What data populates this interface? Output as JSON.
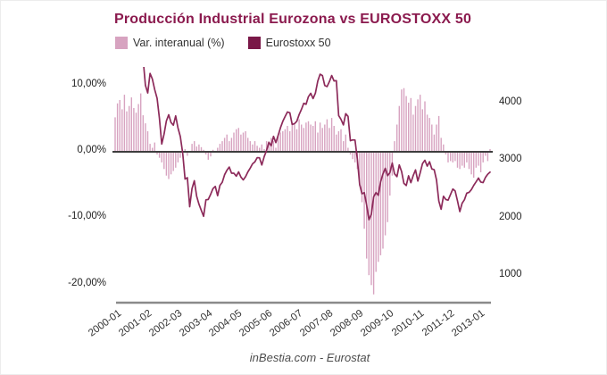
{
  "title": "Producción Industrial Eurozona vs EUROSTOXX 50",
  "legend": [
    {
      "label": "Var. interanual (%)"
    },
    {
      "label": "Eurostoxx 50"
    }
  ],
  "footer": "inBestia.com - Eurostat",
  "colors": {
    "title": "#8b1a4e",
    "bars": "#d7a3c0",
    "line": "#8c2a5a",
    "legend_bar_swatch": "#d7a3c0",
    "legend_line_swatch": "#7a1848",
    "zero_line": "#3d3d3d",
    "axis_line": "#8a8a8a"
  },
  "chart_data": {
    "type": "combo",
    "title": "Producción Industrial Eurozona vs EUROSTOXX 50",
    "x_start": "2000-01",
    "x_frequency": "monthly",
    "x_tick_labels": [
      "2000-01",
      "2001-02",
      "2002-03",
      "2003-04",
      "2004-05",
      "2005-06",
      "2006-07",
      "2007-08",
      "2008-09",
      "2009-10",
      "2010-11",
      "2011-12",
      "2013-01"
    ],
    "x_tick_indices": [
      0,
      13,
      26,
      39,
      52,
      65,
      78,
      91,
      104,
      117,
      130,
      143,
      156
    ],
    "left_axis": {
      "ticks": [
        "10,00%",
        "0,00%",
        "-10,00%",
        "-20,00%"
      ],
      "tick_values": [
        10,
        0,
        -10,
        -20
      ],
      "range": [
        -22.8,
        12.6
      ],
      "grid": false
    },
    "right_axis": {
      "ticks": [
        "4000",
        "3000",
        "2000",
        "1000"
      ],
      "tick_values": [
        4000,
        3000,
        2000,
        1000
      ],
      "range": [
        530,
        4620
      ],
      "grid": false
    },
    "legend_position": "top-left",
    "series": [
      {
        "name": "Var. interanual (%)",
        "type": "bar",
        "axis": "left",
        "unit": "%",
        "values": [
          5.2,
          7.3,
          7.8,
          6.4,
          8.6,
          6.1,
          6.9,
          8.2,
          6.6,
          5.9,
          7.2,
          8.8,
          5.5,
          4.3,
          3.1,
          1.2,
          0.6,
          1.4,
          -0.4,
          -0.9,
          -1.6,
          -2.6,
          -3.6,
          -4.1,
          -3.4,
          -2.9,
          -2.4,
          -1.6,
          -0.9,
          -0.4,
          0.4,
          -0.6,
          0.1,
          1.2,
          1.6,
          0.8,
          1.1,
          0.7,
          0.3,
          -0.4,
          -1.2,
          -0.7,
          0.3,
          0.1,
          0.6,
          1.2,
          1.6,
          2.1,
          2.6,
          1.6,
          2.1,
          2.9,
          3.4,
          3.6,
          2.6,
          2.9,
          3.1,
          2.1,
          1.6,
          1.1,
          1.6,
          0.9,
          0.6,
          1.1,
          0.4,
          1.6,
          1.1,
          2.1,
          1.6,
          0.6,
          2.6,
          2.9,
          3.1,
          3.4,
          3.9,
          3.1,
          4.4,
          4.1,
          3.4,
          4.9,
          4.1,
          3.6,
          4.4,
          4.6,
          4.1,
          3.9,
          4.6,
          2.9,
          4.4,
          3.6,
          4.1,
          4.9,
          3.6,
          5.1,
          3.9,
          2.6,
          3.1,
          3.4,
          1.6,
          2.6,
          0.6,
          -0.4,
          -1.1,
          -1.6,
          -2.6,
          -5.1,
          -7.6,
          -11.6,
          -16.1,
          -18.6,
          -20.1,
          -21.5,
          -18.1,
          -16.6,
          -15.6,
          -14.6,
          -12.6,
          -10.6,
          -6.6,
          -3.6,
          1.6,
          4.1,
          6.9,
          9.4,
          9.6,
          8.4,
          7.4,
          8.1,
          5.6,
          6.9,
          7.9,
          8.6,
          6.4,
          7.6,
          5.6,
          5.1,
          4.1,
          2.6,
          4.1,
          5.4,
          2.1,
          1.1,
          -0.4,
          -1.6,
          -1.4,
          -1.6,
          -1.4,
          -2.4,
          -2.6,
          -2.1,
          -2.4,
          -1.6,
          -2.6,
          -3.4,
          -3.9,
          -2.4,
          -2.1,
          -3.1,
          -1.6,
          -0.6,
          -1.4,
          0.4
        ]
      },
      {
        "name": "Eurostoxx 50",
        "type": "line",
        "axis": "right",
        "values": [
          4659,
          4915,
          5249,
          5226,
          5085,
          5145,
          5115,
          5175,
          4915,
          4822,
          4790,
          4772,
          4780,
          4319,
          4185,
          4526,
          4426,
          4244,
          4092,
          3743,
          3296,
          3468,
          3698,
          3806,
          3671,
          3624,
          3785,
          3574,
          3426,
          3133,
          2686,
          2709,
          2204,
          2519,
          2656,
          2386,
          2248,
          2140,
          2036,
          2324,
          2330,
          2420,
          2519,
          2556,
          2395,
          2575,
          2630,
          2761,
          2839,
          2894,
          2787,
          2787,
          2736,
          2811,
          2720,
          2671,
          2726,
          2811,
          2876,
          2951,
          2984,
          3058,
          3056,
          2930,
          3077,
          3182,
          3327,
          3264,
          3429,
          3320,
          3447,
          3579,
          3691,
          3774,
          3854,
          3840,
          3637,
          3649,
          3692,
          3809,
          3899,
          4005,
          3987,
          4120,
          4179,
          4087,
          4181,
          4392,
          4512,
          4489,
          4316,
          4295,
          4382,
          4489,
          4395,
          4400,
          3792,
          3724,
          3628,
          3825,
          3778,
          3353,
          3367,
          3365,
          3038,
          2591,
          2430,
          2448,
          2236,
          1976,
          2071,
          2375,
          2451,
          2401,
          2638,
          2775,
          2872,
          2744,
          2797,
          2965,
          2776,
          2728,
          2931,
          2816,
          2610,
          2573,
          2742,
          2622,
          2747,
          2844,
          2650,
          2793,
          2954,
          3013,
          2910,
          2987,
          2861,
          2848,
          2670,
          2302,
          2159,
          2385,
          2330,
          2317,
          2417,
          2512,
          2477,
          2306,
          2118,
          2264,
          2325,
          2440,
          2454,
          2503,
          2575,
          2636,
          2703,
          2633,
          2624,
          2712,
          2770,
          2805
        ]
      }
    ]
  }
}
